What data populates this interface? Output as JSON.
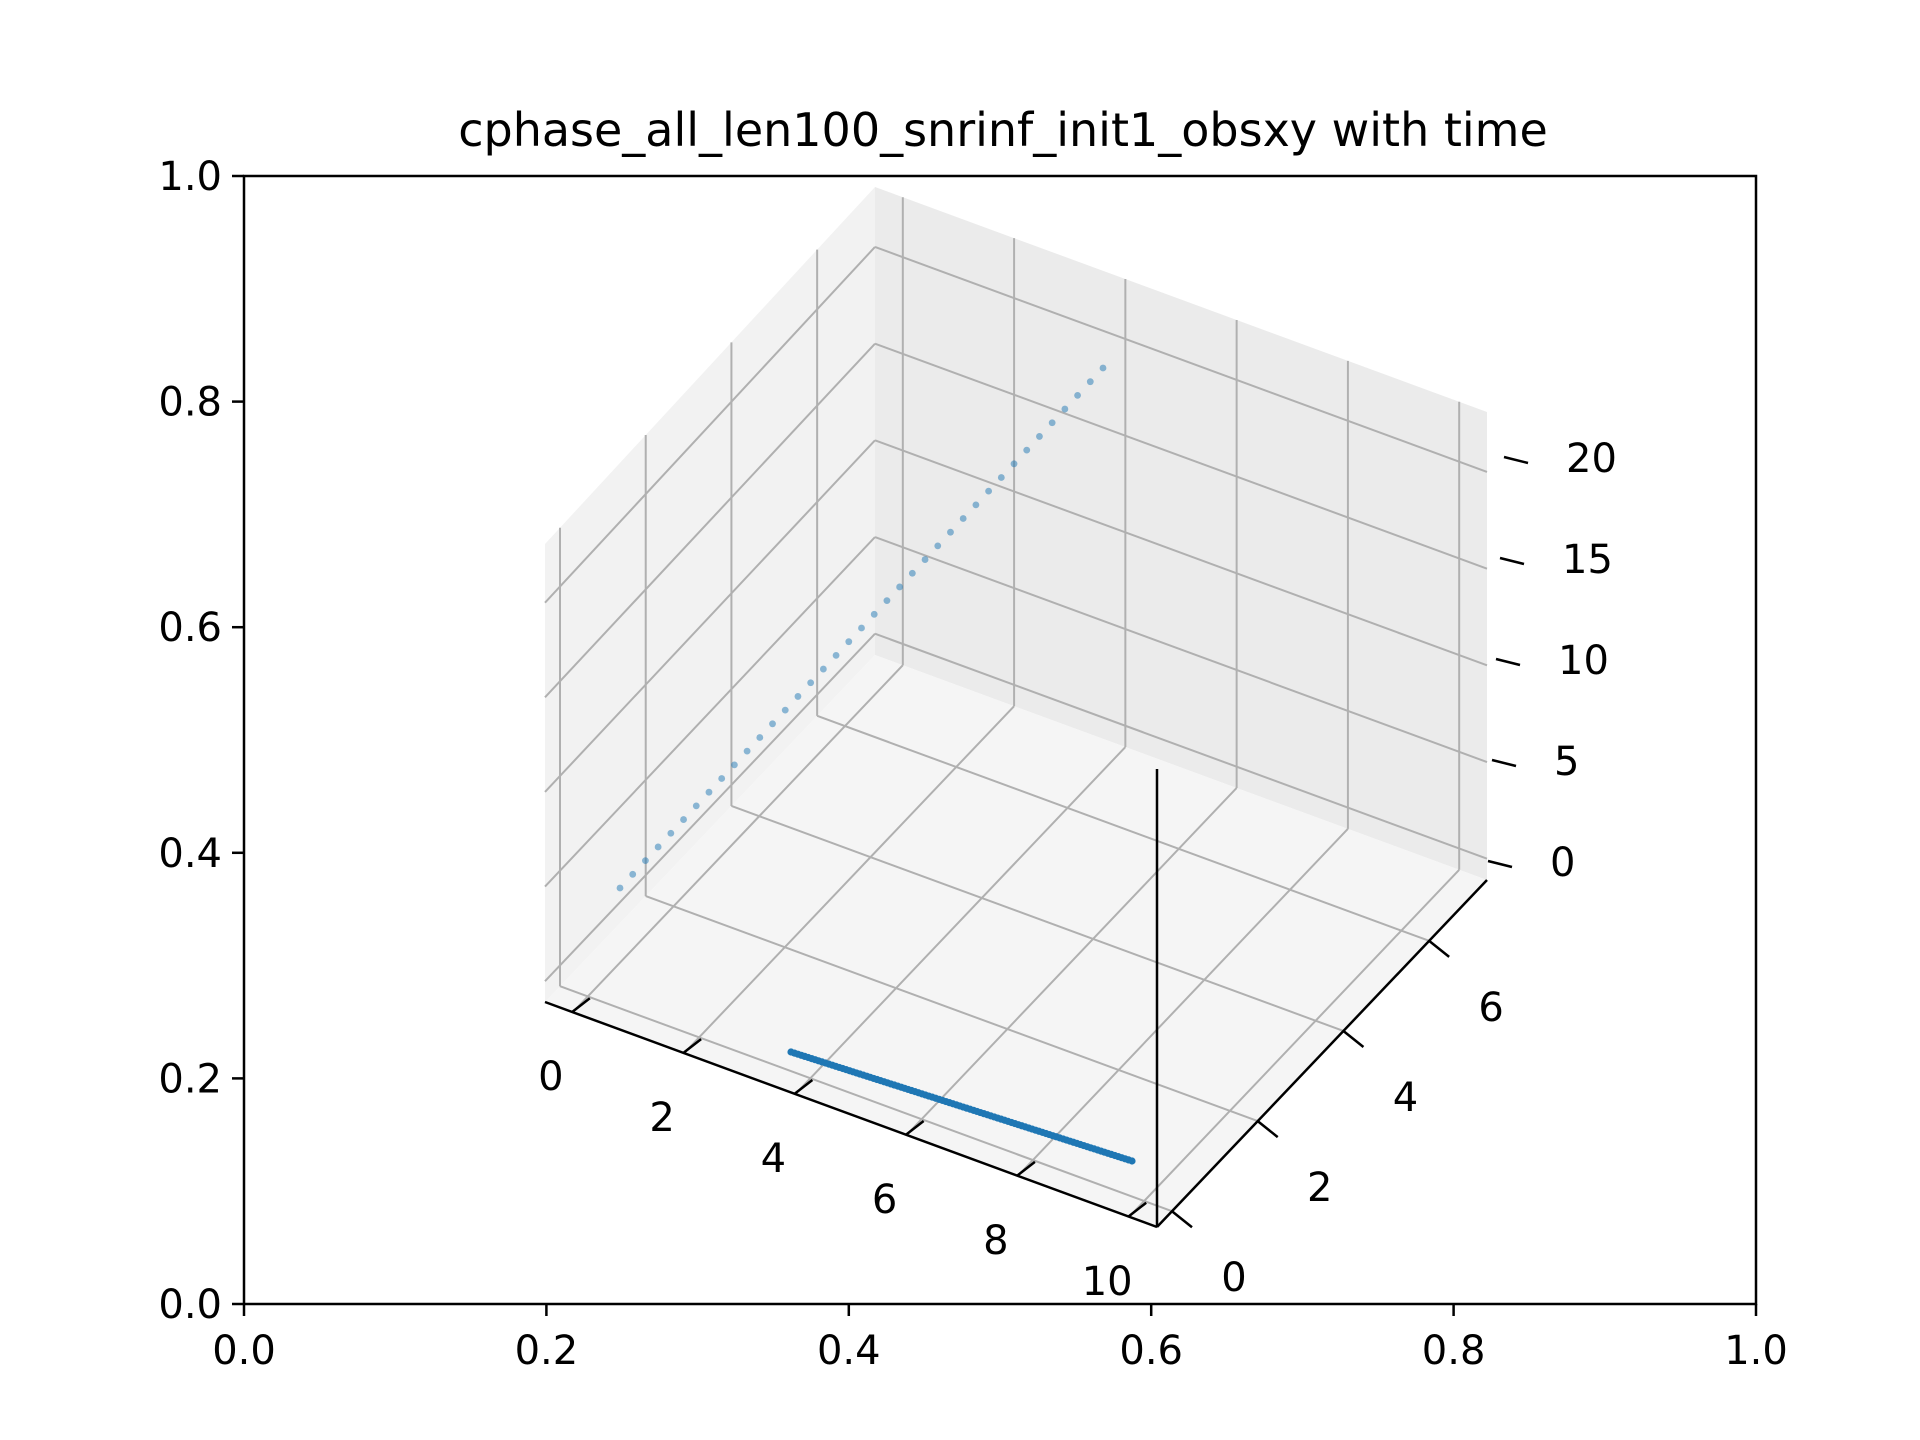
{
  "chart_data": {
    "type": "scatter",
    "projection": "3d",
    "title": "cphase_all_len100_snrinf_init1_obsxy with time",
    "outer_axes": {
      "xlim": [
        0,
        1
      ],
      "ylim": [
        0,
        1
      ],
      "xticks": [
        "0.0",
        "0.2",
        "0.4",
        "0.6",
        "0.8",
        "1.0"
      ],
      "yticks": [
        "0.0",
        "0.2",
        "0.4",
        "0.6",
        "0.8",
        "1.0"
      ]
    },
    "axes3d": {
      "x_ticks": [
        "0",
        "2",
        "4",
        "6",
        "8",
        "10"
      ],
      "y_ticks": [
        "0",
        "2",
        "4",
        "6"
      ],
      "z_ticks": [
        "0",
        "5",
        "10",
        "15",
        "20"
      ],
      "xlim": [
        -0.5,
        10.5
      ],
      "ylim": [
        -0.35,
        7.35
      ],
      "zlim": [
        -1.1,
        23.1
      ],
      "grid": true
    },
    "series": [
      {
        "marker": "dot",
        "color": "#1f77b4",
        "description_free": true,
        "points_start": {
          "x": 4.6,
          "y": -0.03,
          "z": 0
        },
        "points_end": {
          "x": 9.9,
          "y": 0.0,
          "z": 0
        },
        "count": 100,
        "z_const": 0
      },
      {
        "marker": "dot",
        "color": "#1f77b4",
        "alpha": 0.5,
        "points_start": {
          "x": -0.5,
          "y": 0.0,
          "z": 0.2
        },
        "points_end": {
          "x": -0.5,
          "y": 7.3,
          "z": 21.9
        },
        "count": 39
      }
    ]
  }
}
